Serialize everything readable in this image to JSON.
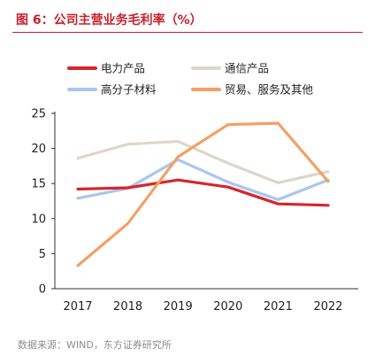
{
  "header": {
    "title": "图 6：公司主营业务毛利率（%）"
  },
  "footer": {
    "source": "数据来源：WIND，东方证券研究所"
  },
  "chart_data": {
    "type": "line",
    "title": "图 6：公司主营业务毛利率（%）",
    "categories": [
      "2017",
      "2018",
      "2019",
      "2020",
      "2021",
      "2022"
    ],
    "ylim": [
      0,
      25
    ],
    "yticks": [
      0,
      5,
      10,
      15,
      20,
      25
    ],
    "grid": false,
    "legend_position": "top",
    "series": [
      {
        "name": "电力产品",
        "color": "#d7252c",
        "values": [
          14.2,
          14.4,
          15.5,
          14.5,
          12.1,
          11.9
        ]
      },
      {
        "name": "通信产品",
        "color": "#ded6c8",
        "values": [
          18.6,
          20.6,
          21.0,
          17.9,
          15.1,
          16.7
        ]
      },
      {
        "name": "高分子材料",
        "color": "#a9c6ee",
        "values": [
          12.9,
          14.3,
          18.4,
          15.2,
          12.7,
          15.5
        ]
      },
      {
        "name": "贸易、服务及其他",
        "color": "#f4a064",
        "values": [
          3.3,
          9.3,
          18.8,
          23.4,
          23.6,
          15.3
        ]
      }
    ]
  }
}
